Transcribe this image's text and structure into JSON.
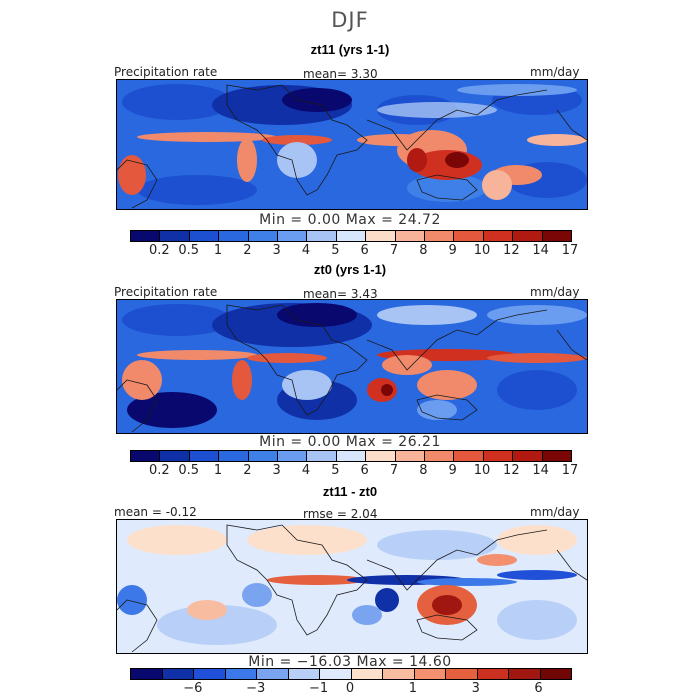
{
  "season": "DJF",
  "panels": [
    {
      "title": "zt11 (yrs 1-1)",
      "left_label": "Precipitation rate",
      "center_label": "mean=    3.30",
      "right_label": "mm/day",
      "minmax": "Min =    0.00  Max =   24.72",
      "colorbar_ticks": [
        "0.2",
        "0.5",
        "1",
        "2",
        "3",
        "4",
        "5",
        "6",
        "7",
        "8",
        "9",
        "10",
        "12",
        "14",
        "17"
      ]
    },
    {
      "title": "zt0 (yrs 1-1)",
      "left_label": "Precipitation rate",
      "center_label": "mean=    3.43",
      "right_label": "mm/day",
      "minmax": "Min =    0.00  Max =   26.21",
      "colorbar_ticks": [
        "0.2",
        "0.5",
        "1",
        "2",
        "3",
        "4",
        "5",
        "6",
        "7",
        "8",
        "9",
        "10",
        "12",
        "14",
        "17"
      ]
    },
    {
      "title": "zt11 - zt0",
      "left_label": "mean =   -0.12",
      "center_label": "rmse =    2.04",
      "right_label": "mm/day",
      "minmax": "Min =  −16.03  Max =   14.60",
      "colorbar_ticks": [
        "−6",
        "−3",
        "−1",
        "0",
        "1",
        "3",
        "6"
      ]
    }
  ],
  "colors": {
    "abs_scale": [
      "#08086e",
      "#1030a8",
      "#1c50d0",
      "#2a68e0",
      "#3f80e8",
      "#6a9cf0",
      "#a8c4f5",
      "#d8e6fb",
      "#fbdcc8",
      "#f7b49a",
      "#f08a6a",
      "#e4593e",
      "#d03020",
      "#b01a10",
      "#7a0606"
    ],
    "diff_scale": [
      "#08086e",
      "#1030a8",
      "#2050d8",
      "#3c78e8",
      "#7aa4f0",
      "#b8d0f8",
      "#dfeafc",
      "#fde0cc",
      "#f8bca0",
      "#f29070",
      "#e4603e",
      "#cc3020",
      "#a01610",
      "#700606"
    ],
    "land_outline": "#1a1a1a"
  }
}
